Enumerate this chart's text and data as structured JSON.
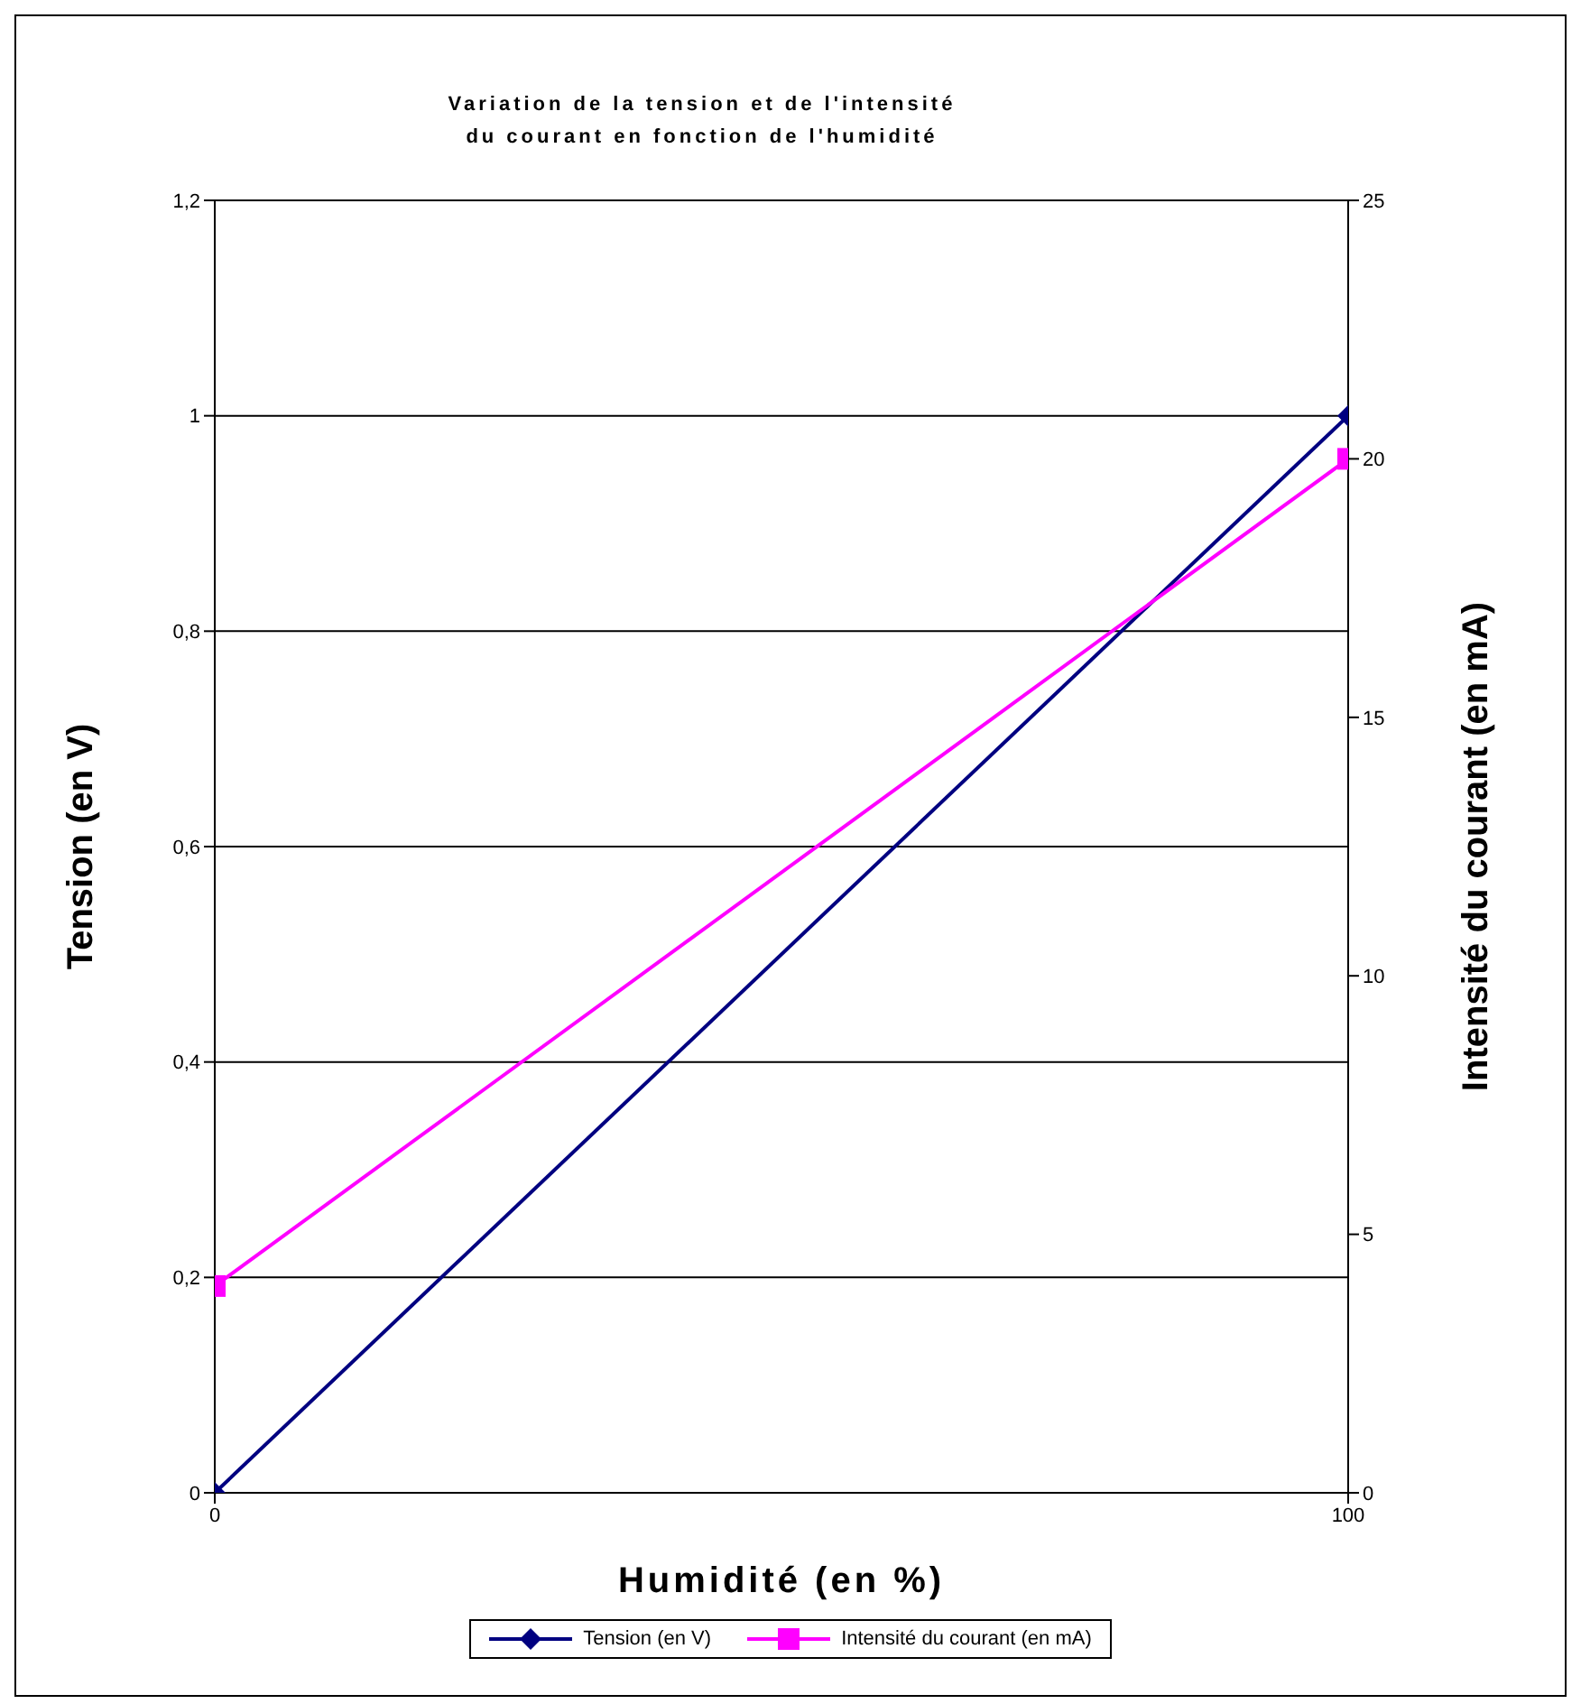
{
  "chart_data": {
    "type": "line",
    "title": "Variation de la tension et de l'intensité\ndu courant en fonction de l'humidité",
    "xlabel": "Humidité (en %)",
    "ylabel": "Tension (en V)",
    "y2label": "Intensité du courant (en mA)",
    "x": [
      0,
      100
    ],
    "xlim": [
      0,
      100
    ],
    "xticks": [
      0,
      100
    ],
    "ylim": [
      0,
      1.2
    ],
    "yticks": [
      0,
      {
        "value": 0.2,
        "label": "0,2"
      },
      {
        "value": 0.4,
        "label": "0,4"
      },
      {
        "value": 0.6,
        "label": "0,6"
      },
      {
        "value": 0.8,
        "label": "0,8"
      },
      1,
      {
        "value": 1.2,
        "label": "1,2"
      }
    ],
    "y2lim": [
      0,
      25
    ],
    "y2ticks": [
      0,
      5,
      10,
      15,
      20,
      25
    ],
    "grid": "y",
    "legend": "bottom",
    "line_style": "solid",
    "series": [
      {
        "name": "Tension (en V)",
        "color": "#000080",
        "values": [
          0,
          1
        ],
        "marker": "diamond"
      },
      {
        "name": "Intensité du courant (en mA)",
        "color": "#ff00ff",
        "values": [
          4,
          20
        ],
        "axis": "y2",
        "marker": "square"
      }
    ]
  }
}
